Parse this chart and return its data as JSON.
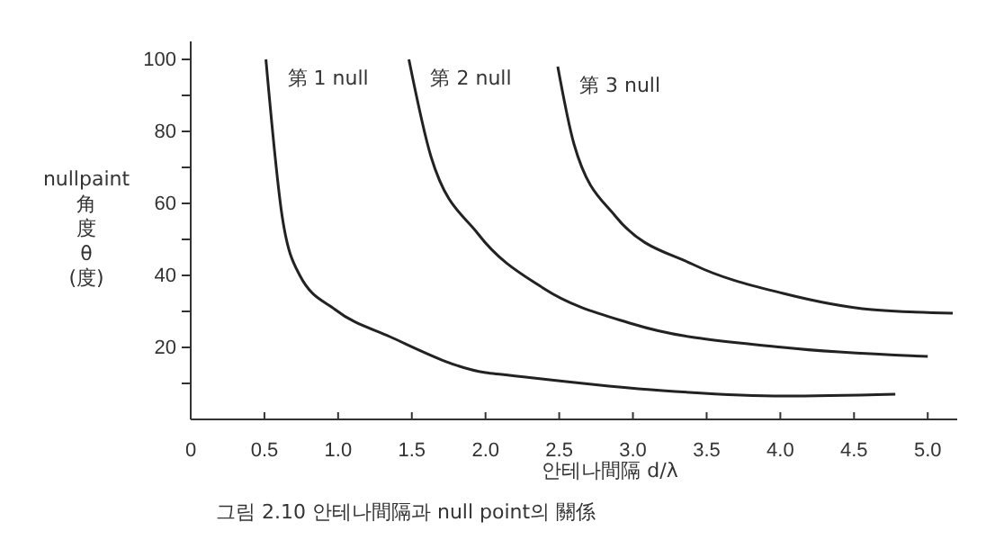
{
  "chart_data": {
    "type": "line",
    "xlabel": "안테나間隔 d/λ",
    "ylabel": "nullpaint角度θ(度)",
    "annotations": [
      "그림 2.10 안테나間隔과 null point의 關係"
    ],
    "xlim": [
      0,
      5.2
    ],
    "ylim": [
      0,
      105
    ],
    "xticks": [
      0,
      0.5,
      {
        "value": 1,
        "label": "1.0"
      },
      1.5,
      {
        "value": 2,
        "label": "2.0"
      },
      2.5,
      {
        "value": 3,
        "label": "3.0"
      },
      3.5,
      {
        "value": 4,
        "label": "4.0"
      },
      4.5,
      {
        "value": 5,
        "label": "5.0"
      }
    ],
    "yticks": [
      {
        "value": 10,
        "label": null
      },
      20,
      {
        "value": 30,
        "label": null
      },
      40,
      {
        "value": 50,
        "label": null
      },
      60,
      {
        "value": 70,
        "label": null
      },
      80,
      {
        "value": 90,
        "label": null
      },
      100
    ],
    "grid": false,
    "legend": false,
    "marker": "none",
    "line_style": "solid",
    "series": [
      {
        "name": "第 1 null",
        "color": "#222222",
        "x": [
          0.51,
          0.62,
          0.74,
          0.98,
          1.35,
          2.0,
          2.11,
          3.2,
          4.02,
          4.78
        ],
        "values": [
          100,
          56.5,
          40,
          30.5,
          23,
          13,
          12.5,
          8,
          6.5,
          7
        ]
      },
      {
        "name": "第 2 null",
        "color": "#222222",
        "x": [
          1.48,
          1.63,
          1.95,
          2.39,
          3.0,
          4.02,
          5.0
        ],
        "values": [
          100,
          73,
          51.5,
          36.5,
          26.5,
          20,
          17.5
        ]
      },
      {
        "name": "第 3 null",
        "color": "#222222",
        "x": [
          2.49,
          2.6,
          2.88,
          3.41,
          4.02,
          4.62,
          5.17
        ],
        "values": [
          98,
          76.5,
          56.5,
          43,
          35,
          30.5,
          29.5
        ]
      }
    ]
  }
}
